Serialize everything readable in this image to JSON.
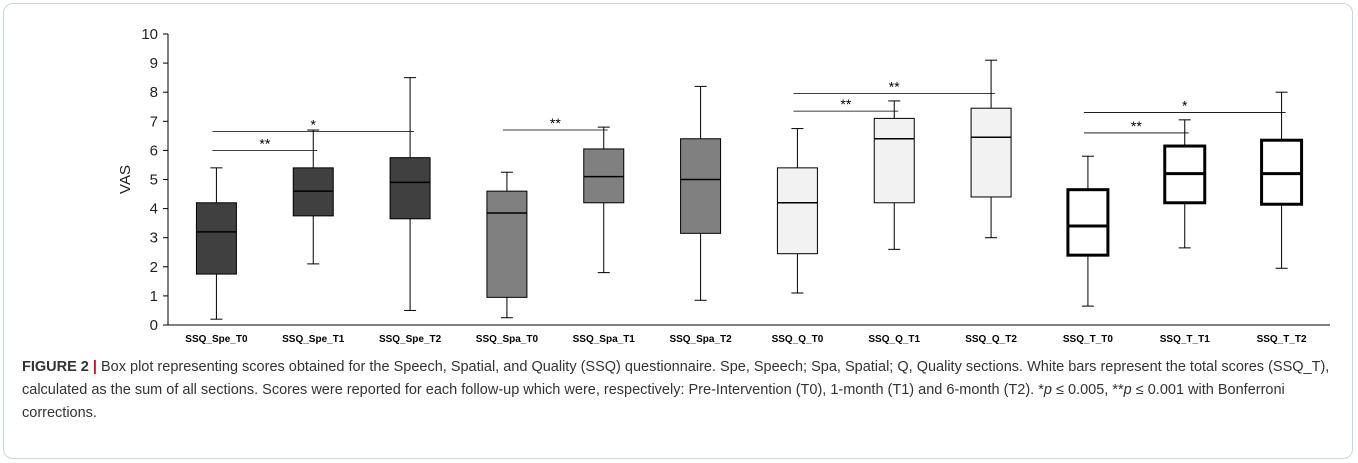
{
  "chart_data": {
    "type": "box",
    "ylabel": "VAS",
    "ylim": [
      0,
      10
    ],
    "yticks": [
      0,
      1,
      2,
      3,
      4,
      5,
      6,
      7,
      8,
      9,
      10
    ],
    "categories": [
      "SSQ_Spe_T0",
      "SSQ_Spe_T1",
      "SSQ_Spe_T2",
      "SSQ_Spa_T0",
      "SSQ_Spa_T1",
      "SSQ_Spa_T2",
      "SSQ_Q_T0",
      "SSQ_Q_T1",
      "SSQ_Q_T2",
      "SSQ_T_T0",
      "SSQ_T_T1",
      "SSQ_T_T2"
    ],
    "boxes": [
      {
        "min": 0.2,
        "q1": 1.75,
        "median": 3.2,
        "q3": 4.2,
        "max": 5.4,
        "group": "spe"
      },
      {
        "min": 2.1,
        "q1": 3.75,
        "median": 4.6,
        "q3": 5.4,
        "max": 6.7,
        "group": "spe"
      },
      {
        "min": 0.5,
        "q1": 3.65,
        "median": 4.9,
        "q3": 5.75,
        "max": 8.5,
        "group": "spe"
      },
      {
        "min": 0.25,
        "q1": 0.95,
        "median": 3.85,
        "q3": 4.6,
        "max": 5.25,
        "group": "spa"
      },
      {
        "min": 1.8,
        "q1": 4.2,
        "median": 5.1,
        "q3": 6.05,
        "max": 6.8,
        "group": "spa"
      },
      {
        "min": 0.85,
        "q1": 3.15,
        "median": 5.0,
        "q3": 6.4,
        "max": 8.2,
        "group": "spa"
      },
      {
        "min": 1.1,
        "q1": 2.45,
        "median": 4.2,
        "q3": 5.4,
        "max": 6.75,
        "group": "q"
      },
      {
        "min": 2.6,
        "q1": 4.2,
        "median": 6.4,
        "q3": 7.1,
        "max": 7.7,
        "group": "q"
      },
      {
        "min": 3.0,
        "q1": 4.4,
        "median": 6.45,
        "q3": 7.45,
        "max": 9.1,
        "group": "q"
      },
      {
        "min": 0.65,
        "q1": 2.4,
        "median": 3.4,
        "q3": 4.65,
        "max": 5.8,
        "group": "t"
      },
      {
        "min": 2.65,
        "q1": 4.2,
        "median": 5.2,
        "q3": 6.15,
        "max": 7.05,
        "group": "t"
      },
      {
        "min": 1.95,
        "q1": 4.15,
        "median": 5.2,
        "q3": 6.35,
        "max": 8.0,
        "group": "t"
      }
    ],
    "group_colors": {
      "spe": "#404040",
      "spa": "#808080",
      "q": "#f2f2f2",
      "t": "#ffffff"
    },
    "significance": [
      {
        "from": 0,
        "to": 1,
        "y": 6.0,
        "label": "**"
      },
      {
        "from": 0,
        "to": 2,
        "y": 6.65,
        "label": "*"
      },
      {
        "from": 3,
        "to": 4,
        "y": 6.7,
        "label": "**"
      },
      {
        "from": 6,
        "to": 7,
        "y": 7.35,
        "label": "**"
      },
      {
        "from": 6,
        "to": 8,
        "y": 7.95,
        "label": "**"
      },
      {
        "from": 9,
        "to": 10,
        "y": 6.6,
        "label": "**"
      },
      {
        "from": 9,
        "to": 11,
        "y": 7.3,
        "label": "*"
      }
    ]
  },
  "caption": {
    "label": "FIGURE 2",
    "separator": "|",
    "line1": "Box plot representing scores obtained for the Speech, Spatial, and Quality (SSQ) questionnaire. Spe, Speech; Spa, Spatial; Q, Quality sections. White bars represent the total scores (SSQ_T), calculated as the sum of all sections. Scores were reported for each follow-up which were, respectively: Pre-Intervention (T0), 1-month (T1) and 6-month (T2).",
    "p1_prefix": "*",
    "p_symbol": "p",
    "p1_text": " ≤ 0.005, **",
    "p2_text": " ≤ 0.001 with Bonferroni corrections."
  }
}
